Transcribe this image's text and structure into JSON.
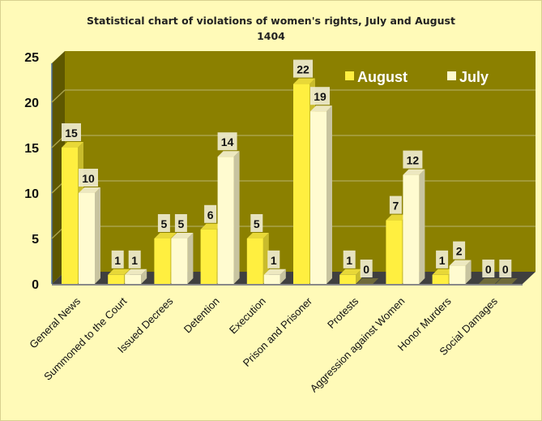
{
  "chart_data": {
    "type": "bar",
    "title": "Statistical chart of violations of women's rights, July and August",
    "title_line2": "1404",
    "categories": [
      "General News",
      "Summoned to the Court",
      "Issued Decrees",
      "Detention",
      "Execution",
      "Prison and Prisoner",
      "Protests",
      "Aggression against Women",
      "Honor Murders",
      "Social Damages"
    ],
    "series": [
      {
        "name": "August",
        "color": "#FFEF40",
        "values": [
          15,
          1,
          5,
          6,
          5,
          22,
          1,
          7,
          1,
          0
        ]
      },
      {
        "name": "July",
        "color": "#FFFBD0",
        "values": [
          10,
          1,
          5,
          14,
          1,
          19,
          0,
          12,
          2,
          0
        ]
      }
    ],
    "yticks": [
      "0",
      "5",
      "10",
      "15",
      "20",
      "25"
    ],
    "ylim": [
      0,
      25
    ],
    "grid": true,
    "legend_position": "top-right",
    "colors": {
      "wall": "#8B8000",
      "side_wall": "#5E5700",
      "floor": "#3F3F3F",
      "grid": "#A9A24A"
    }
  }
}
